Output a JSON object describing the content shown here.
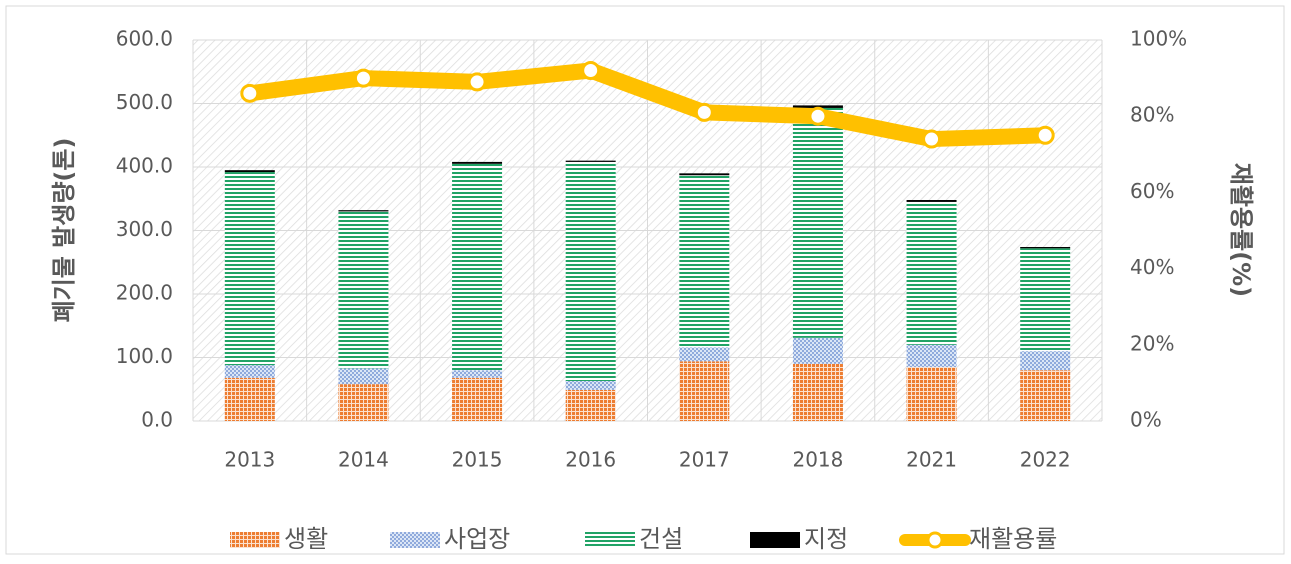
{
  "chart_data": {
    "type": "bar",
    "stacked": true,
    "y_axis_label": "폐기물 발생량(톤)",
    "y2_axis_label": "재활용률(%)",
    "categories": [
      "2013",
      "2014",
      "2015",
      "2016",
      "2017",
      "2018",
      "2021",
      "2022"
    ],
    "series": [
      {
        "name": "생활",
        "color": "#ed7d31",
        "type": "bar",
        "values": [
          68,
          58,
          68,
          49,
          94,
          90,
          85,
          80
        ]
      },
      {
        "name": "사업장",
        "color": "#8faadc",
        "type": "bar",
        "values": [
          20,
          25,
          12,
          14,
          22,
          41,
          35,
          30
        ]
      },
      {
        "name": "건설",
        "color": "#21a366",
        "type": "bar",
        "values": [
          304,
          247,
          325,
          345,
          271,
          362,
          225,
          162
        ]
      },
      {
        "name": "지정",
        "color": "#000000",
        "type": "bar",
        "values": [
          3,
          2,
          3,
          2,
          3,
          4,
          3,
          2
        ]
      },
      {
        "name": "재활용률",
        "color": "#ffc000",
        "type": "line",
        "axis": "y2",
        "values": [
          86,
          90,
          89,
          92,
          81,
          80,
          74,
          75
        ]
      }
    ],
    "ylim": [
      0,
      600
    ],
    "yticks": [
      {
        "value": 0,
        "label": "0.0"
      },
      {
        "value": 100,
        "label": "100.0"
      },
      {
        "value": 200,
        "label": "200.0"
      },
      {
        "value": 300,
        "label": "300.0"
      },
      {
        "value": 400,
        "label": "400.0"
      },
      {
        "value": 500,
        "label": "500.0"
      },
      {
        "value": 600,
        "label": "600.0"
      }
    ],
    "y2lim": [
      0,
      100
    ],
    "y2ticks": [
      {
        "value": 0,
        "label": "0%"
      },
      {
        "value": 20,
        "label": "20%"
      },
      {
        "value": 40,
        "label": "40%"
      },
      {
        "value": 60,
        "label": "60%"
      },
      {
        "value": 80,
        "label": "80%"
      },
      {
        "value": 100,
        "label": "100%"
      }
    ],
    "grid": true,
    "legend": "bottom"
  }
}
